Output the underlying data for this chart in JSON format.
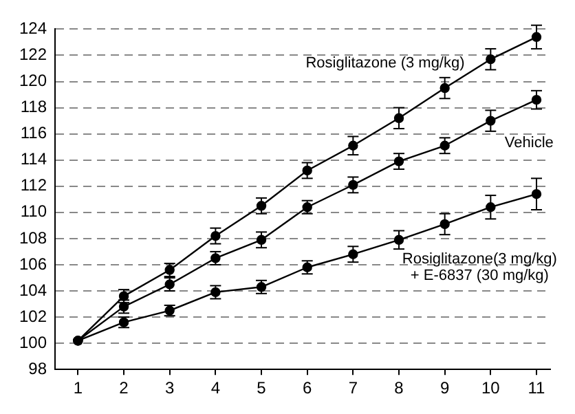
{
  "chart_data": {
    "type": "line",
    "x": [
      1,
      2,
      3,
      4,
      5,
      6,
      7,
      8,
      9,
      10,
      11
    ],
    "xlim": [
      0.5,
      11.3
    ],
    "xticks": [
      1,
      2,
      3,
      4,
      5,
      6,
      7,
      8,
      9,
      10,
      11
    ],
    "ylim": [
      98,
      124
    ],
    "yticks": [
      98,
      100,
      102,
      104,
      106,
      108,
      110,
      112,
      114,
      116,
      118,
      120,
      122,
      124
    ],
    "grid": "y",
    "line_style": "solid",
    "marker": "circle",
    "legend": false,
    "series": [
      {
        "name": "Rosiglitazone (3 mg/kg)",
        "color": "#000000",
        "values": [
          100.2,
          103.6,
          105.6,
          108.2,
          110.5,
          113.2,
          115.1,
          117.2,
          119.5,
          121.7,
          123.4
        ],
        "errors": [
          null,
          0.5,
          0.5,
          0.6,
          0.6,
          0.6,
          0.7,
          0.8,
          0.8,
          0.8,
          0.9
        ]
      },
      {
        "name": "Vehicle",
        "color": "#000000",
        "values": [
          100.2,
          102.8,
          104.5,
          106.5,
          107.9,
          110.4,
          112.1,
          113.9,
          115.1,
          117.0,
          118.6
        ],
        "errors": [
          null,
          0.5,
          0.5,
          0.5,
          0.6,
          0.5,
          0.6,
          0.6,
          0.6,
          0.8,
          0.7
        ]
      },
      {
        "name": "Rosiglitazone(3 mg/kg) + E-6837 (30 mg/kg)",
        "color": "#000000",
        "values": [
          100.2,
          101.6,
          102.5,
          103.9,
          104.3,
          105.8,
          106.8,
          107.9,
          109.1,
          110.4,
          111.4
        ],
        "errors": [
          null,
          0.4,
          0.4,
          0.5,
          0.5,
          0.5,
          0.6,
          0.7,
          0.8,
          0.9,
          1.2
        ]
      }
    ]
  }
}
